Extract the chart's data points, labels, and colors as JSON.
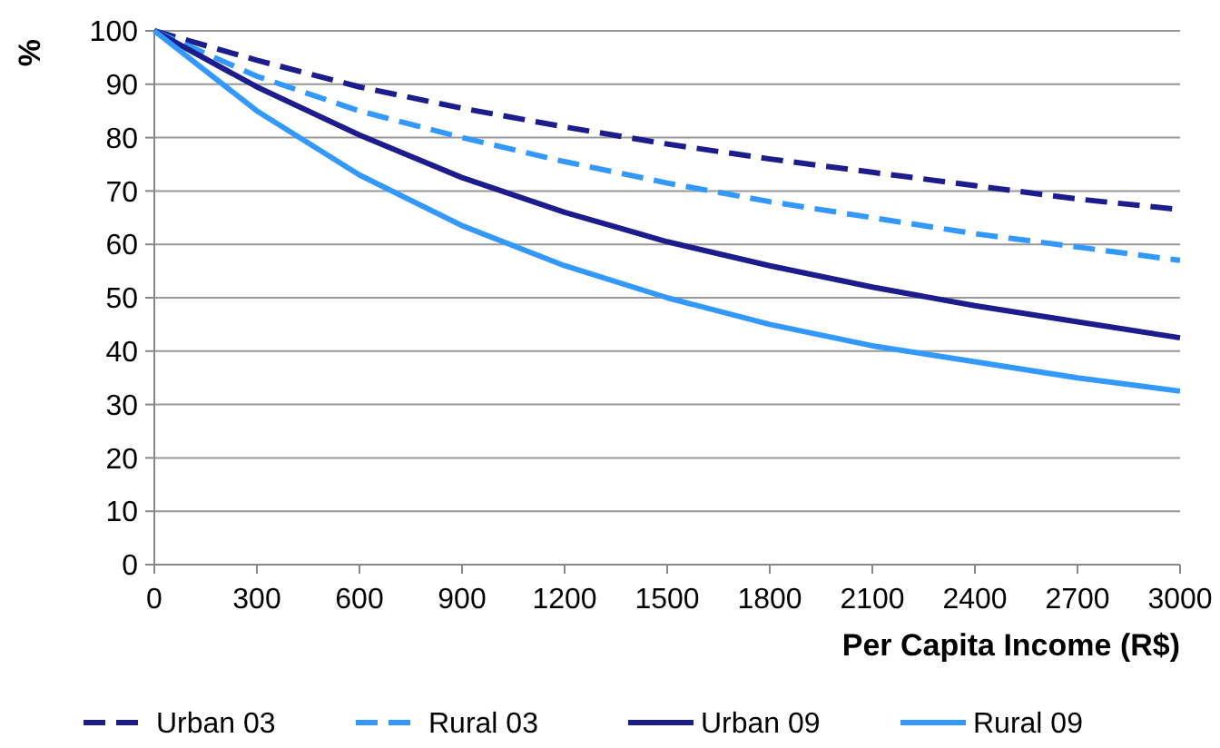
{
  "chart_data": {
    "type": "line",
    "xlabel": "Per Capita Income (R$)",
    "ylabel": "%",
    "x": [
      0,
      300,
      600,
      900,
      1200,
      1500,
      1800,
      2100,
      2400,
      2700,
      3000
    ],
    "series": [
      {
        "name": "Urban 03",
        "color": "#1c1c8c",
        "line_style": "dashed",
        "values": [
          100,
          94.5,
          89.5,
          85.5,
          82,
          78.8,
          76,
          73.5,
          71,
          68.5,
          66.5
        ]
      },
      {
        "name": "Rural 03",
        "color": "#3399ff",
        "line_style": "dashed",
        "values": [
          100,
          91.5,
          85,
          80,
          75.5,
          71.5,
          68,
          65,
          62,
          59.5,
          57
        ]
      },
      {
        "name": "Urban 09",
        "color": "#1c1c8c",
        "line_style": "solid",
        "values": [
          100,
          89.5,
          80.5,
          72.5,
          66,
          60.5,
          56,
          52,
          48.5,
          45.5,
          42.5
        ]
      },
      {
        "name": "Rural 09",
        "color": "#3399ff",
        "line_style": "solid",
        "values": [
          100,
          85,
          73,
          63.5,
          56,
          50,
          45,
          41,
          38,
          35,
          32.5
        ]
      }
    ],
    "xlim": [
      0,
      3000
    ],
    "xticks": [
      0,
      300,
      600,
      900,
      1200,
      1500,
      1800,
      2100,
      2400,
      2700,
      3000
    ],
    "ylim": [
      0,
      100
    ],
    "yticks": [
      0,
      10,
      20,
      30,
      40,
      50,
      60,
      70,
      80,
      90,
      100
    ],
    "grid": "y",
    "legend": "bottom",
    "marker": "none"
  }
}
